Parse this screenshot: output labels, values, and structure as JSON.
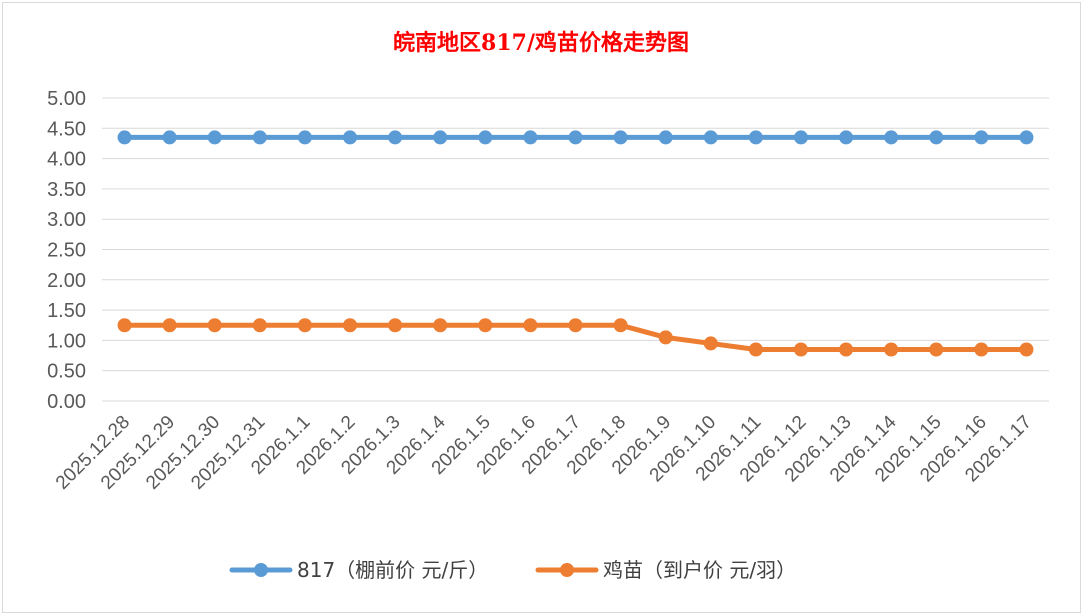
{
  "chart_data": {
    "type": "line",
    "title": "皖南地区817/鸡苗价格走势图",
    "categories": [
      "2025.12.28",
      "2025.12.29",
      "2025.12.30",
      "2025.12.31",
      "2026.1.1",
      "2026.1.2",
      "2026.1.3",
      "2026.1.4",
      "2026.1.5",
      "2026.1.6",
      "2026.1.7",
      "2026.1.8",
      "2026.1.9",
      "2026.1.10",
      "2026.1.11",
      "2026.1.12",
      "2026.1.13",
      "2026.1.14",
      "2026.1.15",
      "2026.1.16",
      "2026.1.17"
    ],
    "series": [
      {
        "name": "817（棚前价 元/斤）",
        "color": "#5b9bd5",
        "values": [
          4.35,
          4.35,
          4.35,
          4.35,
          4.35,
          4.35,
          4.35,
          4.35,
          4.35,
          4.35,
          4.35,
          4.35,
          4.35,
          4.35,
          4.35,
          4.35,
          4.35,
          4.35,
          4.35,
          4.35,
          4.35
        ]
      },
      {
        "name": "鸡苗（到户价 元/羽）",
        "color": "#ed7d31",
        "values": [
          1.25,
          1.25,
          1.25,
          1.25,
          1.25,
          1.25,
          1.25,
          1.25,
          1.25,
          1.25,
          1.25,
          1.25,
          1.05,
          0.95,
          0.85,
          0.85,
          0.85,
          0.85,
          0.85,
          0.85,
          0.85
        ]
      }
    ],
    "yticks": [
      "0.00",
      "0.50",
      "1.00",
      "1.50",
      "2.00",
      "2.50",
      "3.00",
      "3.50",
      "4.00",
      "4.50",
      "5.00"
    ],
    "ylim": [
      0,
      5
    ],
    "grid": true,
    "legend": "bottom"
  }
}
